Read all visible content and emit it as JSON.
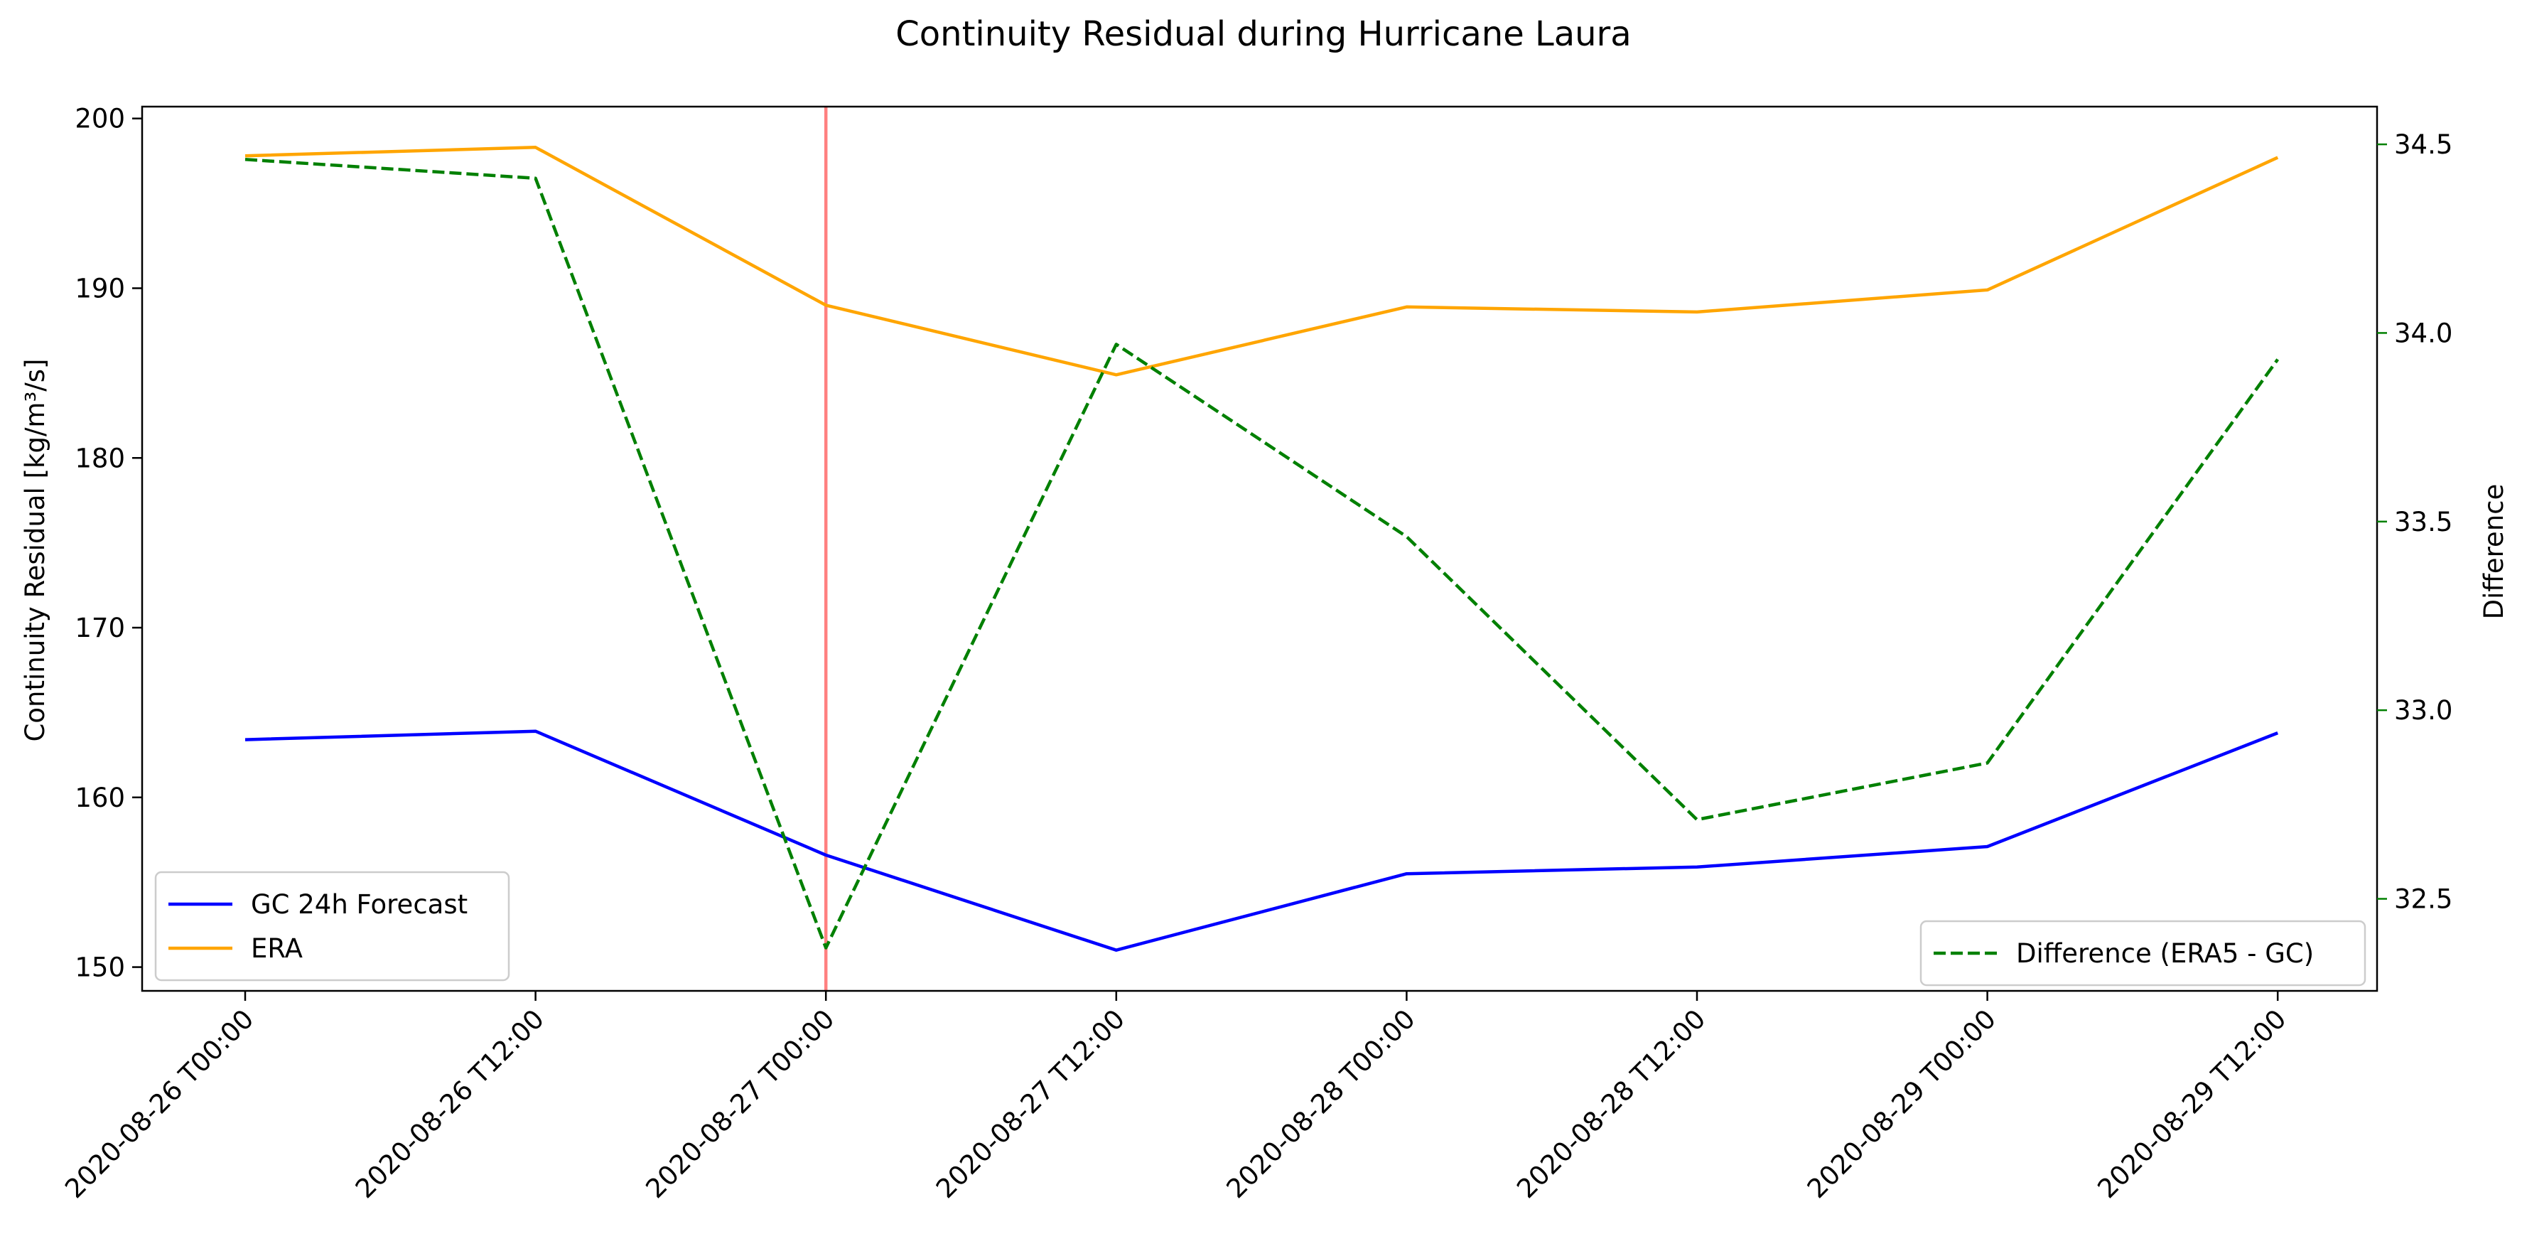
{
  "chart_data": {
    "type": "line",
    "title": "Continuity Residual during Hurricane Laura",
    "xlabel": "",
    "ylabel": "Continuity Residual [kg/m³/s]",
    "y2label": "Difference",
    "categories": [
      "2020-08-26 T00:00",
      "2020-08-26 T12:00",
      "2020-08-27 T00:00",
      "2020-08-27 T12:00",
      "2020-08-28 T00:00",
      "2020-08-28 T12:00",
      "2020-08-29 T00:00",
      "2020-08-29 T12:00"
    ],
    "ylim": [
      148.6,
      200.7
    ],
    "y2lim": [
      32.256,
      34.6
    ],
    "yticks": [
      150,
      160,
      170,
      180,
      190,
      200
    ],
    "y2ticks": [
      "32.5",
      "33.0",
      "33.5",
      "34.0",
      "34.5"
    ],
    "vertical_marker": {
      "category": "2020-08-27 T00:00",
      "color": "#ff8080"
    },
    "series": [
      {
        "name": "GC 24h Forecast",
        "axis": "left",
        "style": "solid",
        "color": "#0000ff",
        "values": [
          163.4,
          163.9,
          156.6,
          151.0,
          155.5,
          155.9,
          157.1,
          163.8
        ]
      },
      {
        "name": "ERA",
        "axis": "left",
        "style": "solid",
        "color": "#ffa500",
        "values": [
          197.8,
          198.3,
          189.0,
          184.9,
          188.9,
          188.6,
          189.9,
          197.7
        ]
      },
      {
        "name": "Difference (ERA5 - GC)",
        "axis": "right",
        "style": "dashed",
        "color": "#008000",
        "values": [
          34.46,
          34.41,
          32.37,
          33.97,
          33.46,
          32.71,
          32.86,
          33.93
        ]
      }
    ],
    "legend_left": {
      "placement": "lower-left",
      "entries": [
        "GC 24h Forecast",
        "ERA"
      ]
    },
    "legend_right": {
      "placement": "lower-right",
      "entries": [
        "Difference (ERA5 - GC)"
      ]
    },
    "grid": false
  },
  "colors": {
    "right_axis": "#008000",
    "frame": "#000000"
  }
}
